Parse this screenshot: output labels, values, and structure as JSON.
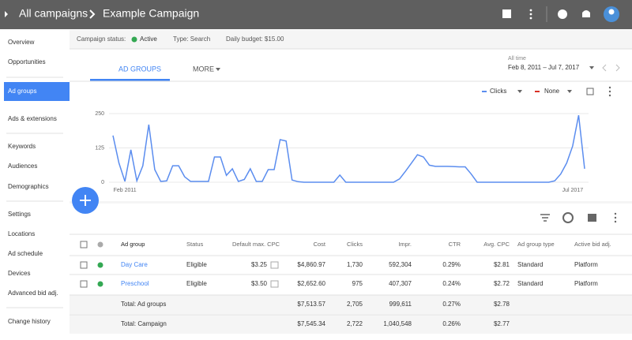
{
  "top_bar": {
    "breadcrumb": [
      "All campaigns",
      "Example Campaign"
    ]
  },
  "sidebar": {
    "items": [
      "Overview",
      "Opportunities",
      "Ad groups",
      "Ads & extensions",
      "Keywords",
      "Audiences",
      "Demographics",
      "Settings",
      "Locations",
      "Ad schedule",
      "Devices",
      "Advanced bid adj.",
      "Change history"
    ],
    "selected_index": 2
  },
  "status_bar": {
    "status_label": "Campaign status:",
    "status": "Active",
    "type": "Type: Search",
    "budget": "Daily budget: $15.00"
  },
  "tabs": {
    "items": [
      "AD GROUPS",
      "MORE"
    ]
  },
  "date_range": {
    "label": "All time",
    "range": "Feb 8, 2011 – Jul 7, 2017"
  },
  "chart_data": {
    "type": "line",
    "categories": [
      null,
      null,
      "Feb 2011",
      null,
      null,
      null,
      null,
      null,
      null,
      null,
      null,
      null,
      null,
      null,
      null,
      null,
      null,
      null,
      null,
      null,
      null,
      null,
      null,
      null,
      null,
      null,
      null,
      null,
      null,
      null,
      null,
      null,
      null,
      null,
      null,
      null,
      null,
      null,
      null,
      null,
      null,
      null,
      null,
      null,
      null,
      null,
      null,
      null,
      null,
      null,
      null,
      null,
      null,
      null,
      null,
      null,
      null,
      null,
      null,
      null,
      null,
      null,
      null,
      null,
      null,
      null,
      null,
      null,
      null,
      null,
      null,
      null,
      null,
      null,
      null,
      null,
      null,
      "Jul 2017",
      null,
      null
    ],
    "series": [
      {
        "name": "Clicks",
        "color": "#5b8def",
        "values": [
          170,
          70,
          3,
          118,
          5,
          60,
          210,
          46,
          3,
          5,
          60,
          60,
          20,
          3,
          3,
          3,
          3,
          92,
          92,
          25,
          49,
          3,
          10,
          49,
          3,
          3,
          46,
          46,
          155,
          150,
          8,
          2,
          0,
          0,
          0,
          0,
          0,
          0,
          26,
          0,
          0,
          0,
          0,
          0,
          0,
          0,
          0,
          0,
          12,
          40,
          70,
          100,
          92,
          62,
          58,
          58,
          58,
          57,
          56,
          56,
          30,
          0,
          0,
          0,
          0,
          0,
          0,
          0,
          0,
          0,
          0,
          0,
          0,
          0,
          5,
          30,
          70,
          132,
          244,
          49
        ]
      }
    ],
    "secondary_metric": {
      "name": "None",
      "color": "#d93025"
    },
    "ylim": [
      0,
      250
    ],
    "yticks": [
      0,
      125,
      250
    ],
    "grid": true
  },
  "table": {
    "headers": [
      "Ad group",
      "Status",
      "Default max. CPC",
      "Cost",
      "Clicks",
      "Impr.",
      "CTR",
      "Avg. CPC",
      "Ad group type",
      "Active bid adj."
    ],
    "rows": [
      [
        "Day Care",
        "Eligible",
        "$3.25",
        "$4,860.97",
        "1,730",
        "592,304",
        "0.29%",
        "$2.81",
        "Standard",
        "Platform"
      ],
      [
        "Preschool",
        "Eligible",
        "$3.50",
        "$2,652.60",
        "975",
        "407,307",
        "0.24%",
        "$2.72",
        "Standard",
        "Platform"
      ]
    ],
    "totals": [
      [
        "Total: Ad groups",
        "$7,513.57",
        "2,705",
        "999,611",
        "0.27%",
        "$2.78"
      ],
      [
        "Total: Campaign",
        "$7,545.34",
        "2,722",
        "1,040,548",
        "0.26%",
        "$2.77"
      ]
    ]
  }
}
